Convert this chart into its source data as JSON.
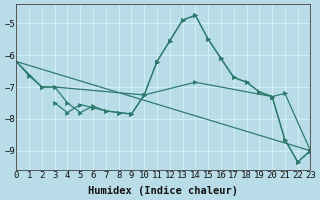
{
  "xlabel": "Humidex (Indice chaleur)",
  "bg_color": "#b8dde8",
  "grid_color": "#d0eef5",
  "line_color": "#2e7b6e",
  "xlim": [
    0,
    23
  ],
  "ylim": [
    -9.6,
    -4.4
  ],
  "yticks": [
    -9,
    -8,
    -7,
    -6,
    -5
  ],
  "xticks": [
    0,
    1,
    2,
    3,
    4,
    5,
    6,
    7,
    8,
    9,
    10,
    11,
    12,
    13,
    14,
    15,
    16,
    17,
    18,
    19,
    20,
    21,
    22,
    23
  ],
  "line1_x": [
    0,
    1,
    2,
    3,
    4,
    5,
    6,
    7,
    8,
    9,
    10,
    11,
    12,
    13,
    14,
    15,
    16,
    17,
    18,
    19,
    20,
    21,
    22,
    23
  ],
  "line1_y": [
    -6.2,
    -6.65,
    -7.0,
    -7.0,
    -7.5,
    -7.8,
    -7.6,
    -7.75,
    -7.8,
    -7.85,
    -7.25,
    -6.2,
    -5.55,
    -4.9,
    -4.75,
    -5.5,
    -6.1,
    -6.7,
    -6.85,
    -7.15,
    -7.3,
    -8.65,
    -9.35,
    -9.0
  ],
  "line2_x": [
    0,
    2,
    3,
    10,
    14,
    20,
    21,
    23
  ],
  "line2_y": [
    -6.2,
    -7.0,
    -7.0,
    -7.25,
    -6.85,
    -7.3,
    -7.2,
    -9.0
  ],
  "line3_x": [
    0,
    23
  ],
  "line3_y": [
    -6.2,
    -9.0
  ],
  "line4_x": [
    3,
    4,
    5,
    6,
    7,
    8,
    9,
    10,
    11,
    12,
    13,
    14,
    15,
    16,
    17,
    18,
    19,
    20,
    21,
    22,
    23
  ],
  "line4_y": [
    -7.5,
    -7.8,
    -7.55,
    -7.65,
    -7.75,
    -7.8,
    -7.85,
    -7.25,
    -6.2,
    -5.55,
    -4.9,
    -4.75,
    -5.5,
    -6.1,
    -6.7,
    -6.85,
    -7.15,
    -7.3,
    -8.65,
    -9.35,
    -9.0
  ]
}
